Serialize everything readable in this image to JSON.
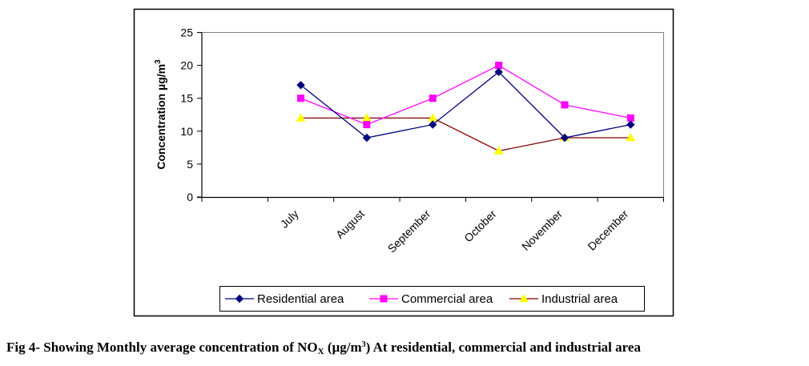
{
  "chart_data": {
    "type": "line",
    "title": "",
    "xlabel": "",
    "ylabel": "Concentration µg/m3",
    "ylabel_parts": {
      "main": "Concentration µg/m",
      "sup": "3"
    },
    "ylim": [
      0,
      25
    ],
    "yticks": [
      0,
      5,
      10,
      15,
      20,
      25
    ],
    "ytick_labels": [
      "0",
      "5",
      "10",
      "15",
      "20",
      "25"
    ],
    "categories": [
      "",
      "July",
      "August",
      "September",
      "October",
      "November",
      "December"
    ],
    "grid": false,
    "legend_position": "bottom",
    "series": [
      {
        "name": "Residential area",
        "marker": "diamond",
        "line_color": "#000080",
        "marker_color": "#000080",
        "values": [
          null,
          17,
          9,
          11,
          19,
          9,
          11
        ]
      },
      {
        "name": "Commercial area",
        "marker": "square",
        "line_color": "#FF00FF",
        "marker_color": "#FF00FF",
        "values": [
          null,
          15,
          11,
          15,
          20,
          14,
          12
        ]
      },
      {
        "name": "Industrial area",
        "marker": "triangle",
        "line_color": "#800000",
        "marker_color": "#FFFF00",
        "values": [
          null,
          12,
          12,
          12,
          7,
          9,
          9
        ]
      }
    ]
  },
  "caption": {
    "prefix": "Fig 4- Showing Monthly average concentration of NO",
    "sub": "X",
    "middle": " (µg/m",
    "sup": "3",
    "suffix": ") At residential, commercial and industrial area"
  }
}
